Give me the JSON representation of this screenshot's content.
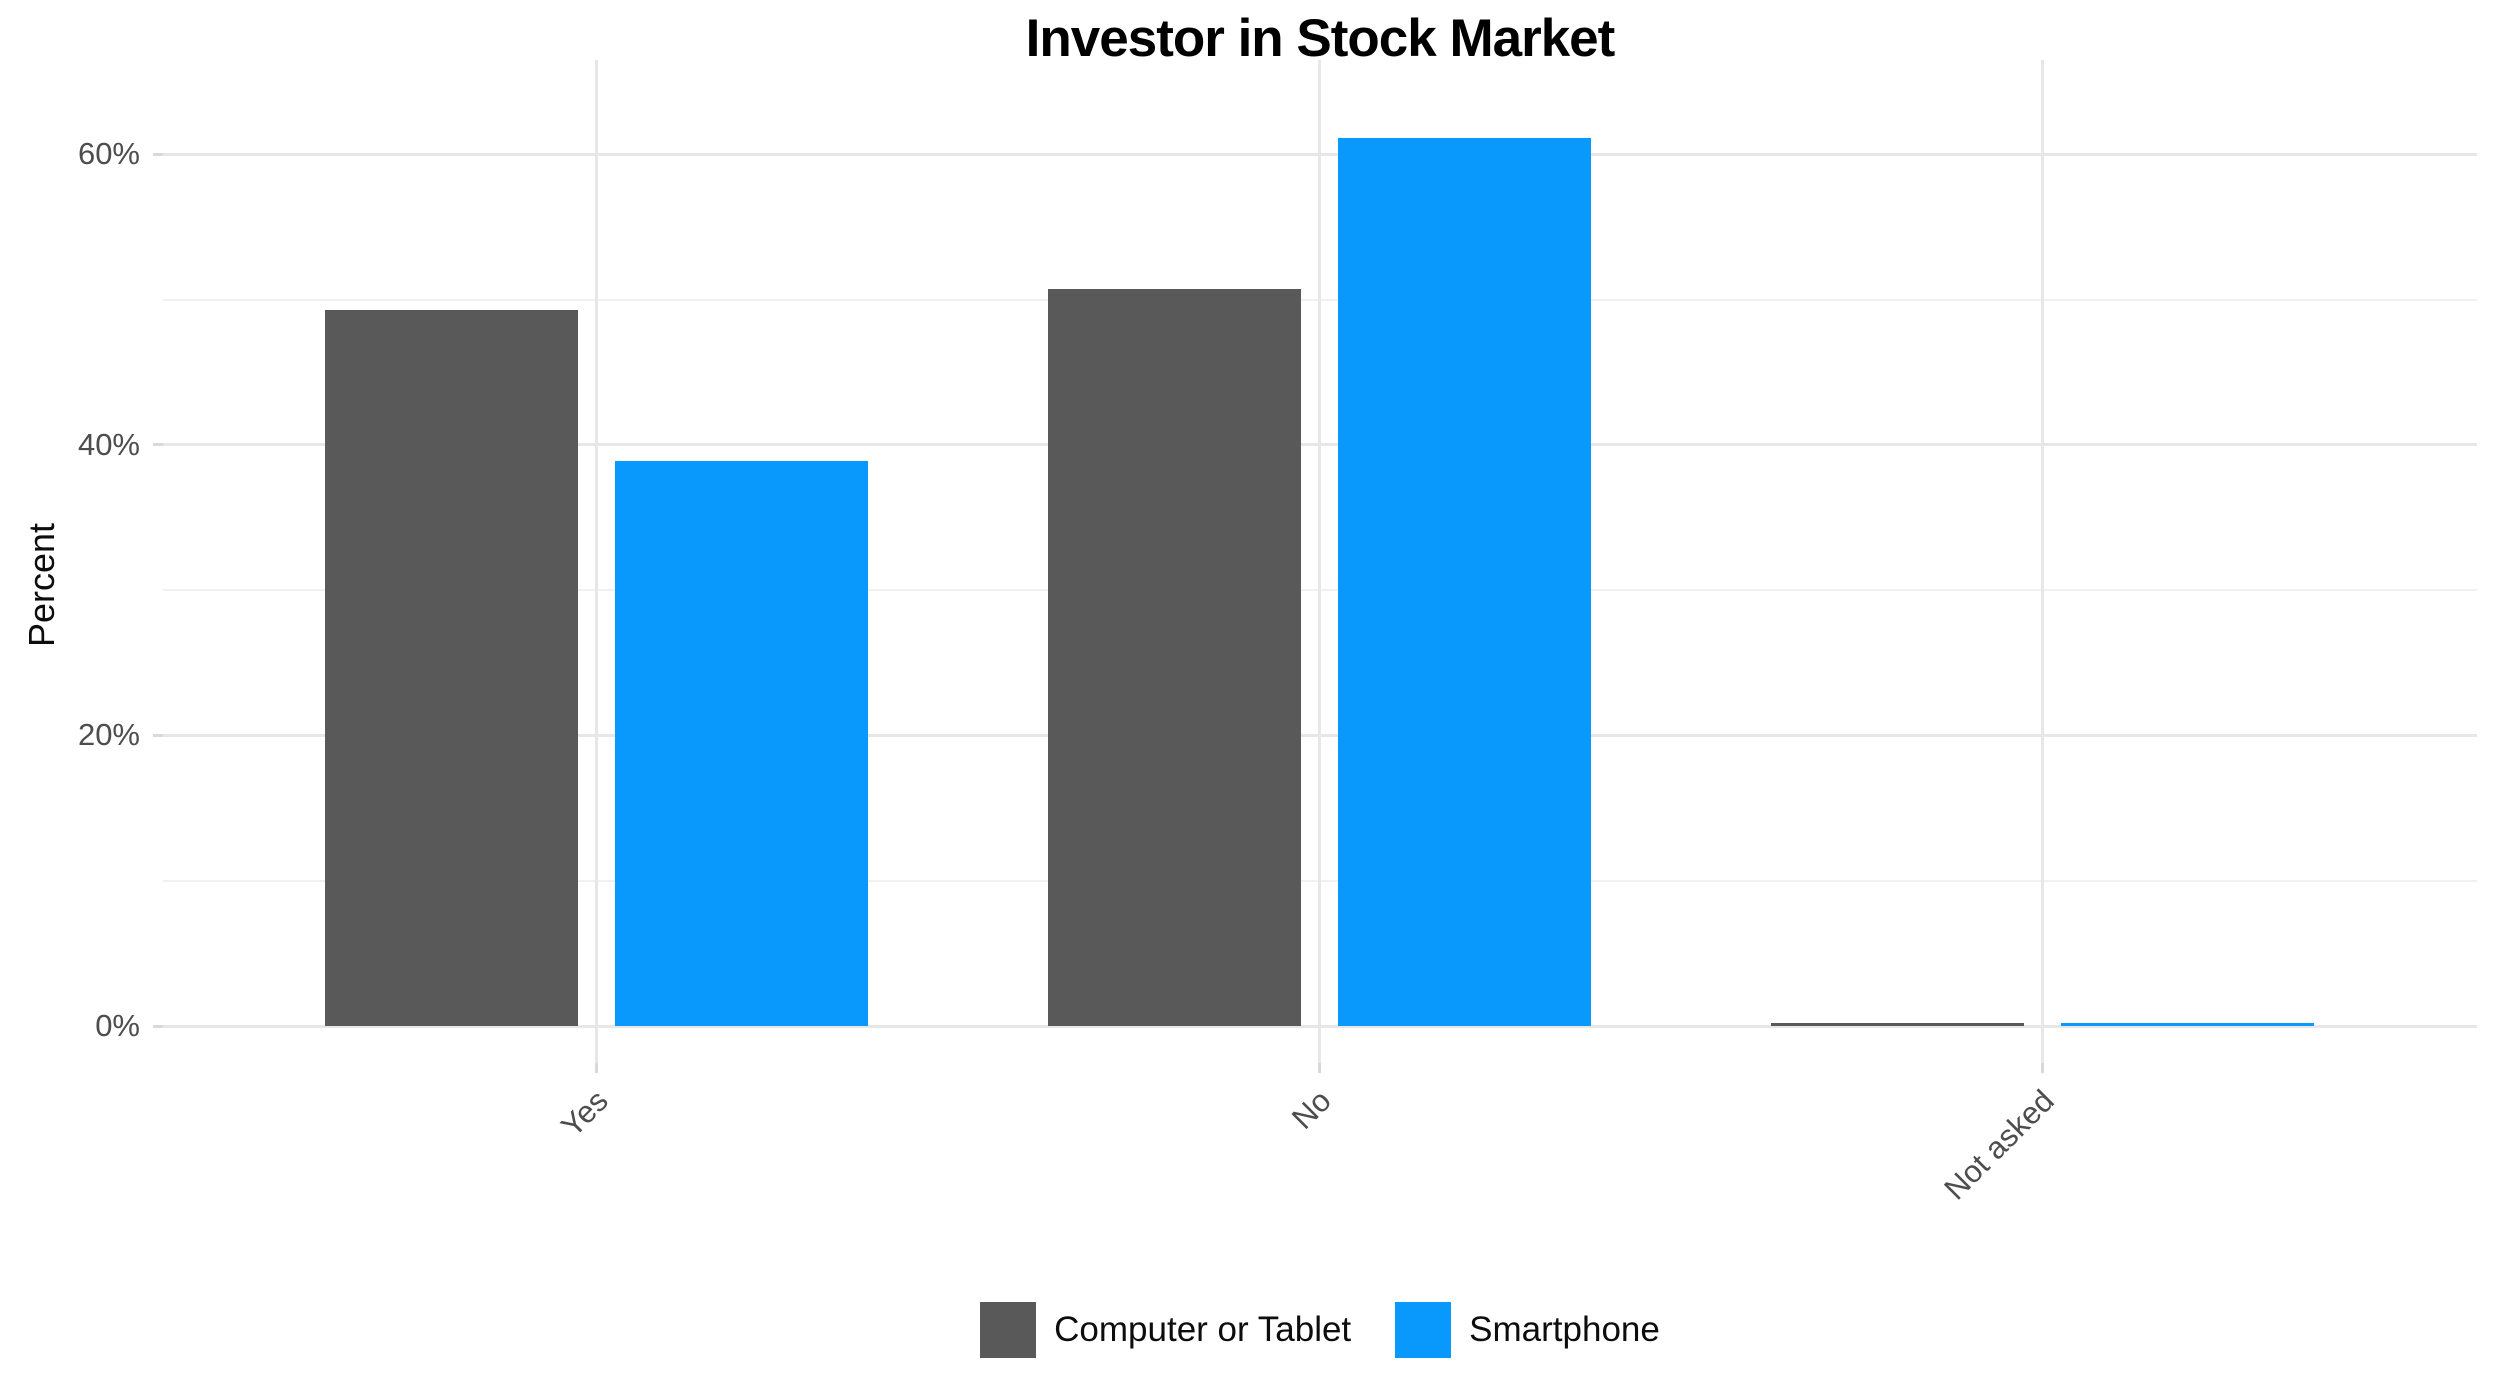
{
  "title": "Investor in Stock Market",
  "y_axis_title": "Percent",
  "chart_data": {
    "type": "bar",
    "title": "Investor in Stock Market",
    "xlabel": "",
    "ylabel": "Percent",
    "categories": [
      "Yes",
      "No",
      "Not asked"
    ],
    "series": [
      {
        "name": "Computer or Tablet",
        "color": "#595959",
        "values": [
          49.3,
          50.7,
          0.2
        ]
      },
      {
        "name": "Smartphone",
        "color": "#0999FC",
        "values": [
          38.9,
          61.1,
          0.2
        ]
      }
    ],
    "y_axis": {
      "ticks": [
        {
          "label": "0%",
          "value": 0
        },
        {
          "label": "20%",
          "value": 20
        },
        {
          "label": "40%",
          "value": 40
        },
        {
          "label": "60%",
          "value": 60
        }
      ],
      "minor_tick_values": [
        10,
        30,
        50
      ],
      "range": [
        0,
        66
      ]
    },
    "grid": true,
    "legend_position": "bottom",
    "x_tick_rotation_deg": 45,
    "bar_layout": "dodged",
    "colors": {
      "grid_major": "#e7e7e7",
      "grid_minor": "#f1f1f1",
      "axis_text": "#4d4d4d",
      "axis_title_text": "#0d0d0d",
      "title_text": "#000000",
      "background": "#ffffff"
    }
  }
}
